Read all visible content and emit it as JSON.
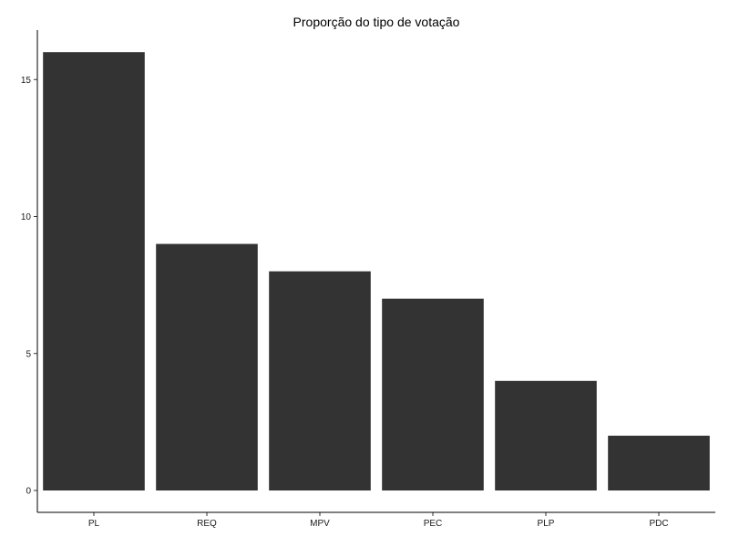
{
  "chart_data": {
    "type": "bar",
    "title": "Proporção do tipo de votação",
    "xlabel": "",
    "ylabel": "",
    "categories": [
      "PL",
      "REQ",
      "MPV",
      "PEC",
      "PLP",
      "PDC"
    ],
    "values": [
      16,
      9,
      8,
      7,
      4,
      2
    ],
    "yticks": [
      0,
      5,
      10,
      15
    ],
    "ytick_labels": [
      "0",
      "5",
      "10",
      "15"
    ],
    "ylim": [
      0,
      16.8
    ],
    "grid": false,
    "legend": "none",
    "bar_color": "#333333",
    "background_color": "#ffffff"
  }
}
